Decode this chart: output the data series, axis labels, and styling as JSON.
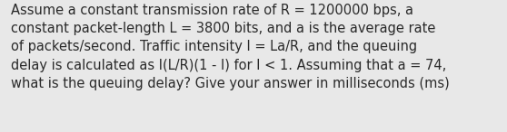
{
  "text": "Assume a constant transmission rate of R = 1200000 bps, a\nconstant packet-length L = 3800 bits, and a is the average rate\nof packets/second. Traffic intensity I = La/R, and the queuing\ndelay is calculated as I(L/R)(1 - I) for I < 1. Assuming that a = 74,\nwhat is the queuing delay? Give your answer in milliseconds (ms)",
  "background_color": "#e8e8e8",
  "text_color": "#2a2a2a",
  "font_size": 10.5,
  "fig_width": 5.58,
  "fig_height": 1.46,
  "dpi": 100
}
